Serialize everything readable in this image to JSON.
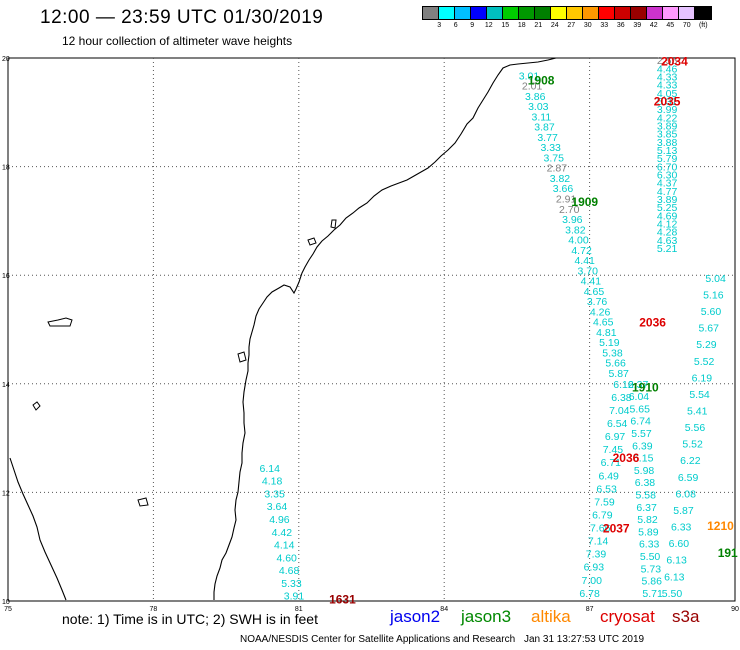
{
  "header": {
    "title": "12:00 — 23:59 UTC 01/30/2019",
    "subtitle": "12 hour collection of altimeter wave heights"
  },
  "legend": {
    "colors": [
      "#808080",
      "#00ffff",
      "#00bfff",
      "#0000ff",
      "#00bfbf",
      "#00cc00",
      "#009900",
      "#007f00",
      "#ffff00",
      "#ffc800",
      "#ff9900",
      "#ff0000",
      "#cc0000",
      "#990000",
      "#cc33cc",
      "#ff99ff",
      "#e6c3ff",
      "#000000"
    ],
    "ticks": [
      "3",
      "6",
      "9",
      "12",
      "15",
      "18",
      "21",
      "24",
      "27",
      "30",
      "33",
      "36",
      "39",
      "42",
      "45",
      "70",
      "(ft)"
    ]
  },
  "map": {
    "lon_range": [
      75,
      90
    ],
    "lat_range": [
      10,
      20
    ],
    "lon_labels": [
      "75",
      "78",
      "81",
      "84",
      "87",
      "90"
    ],
    "lat_labels": [
      "20",
      "18",
      "16",
      "14",
      "12",
      "10"
    ],
    "swh_color": "#00cccc",
    "low_color": "#808080",
    "pass_labels": [
      {
        "text": "2034",
        "color": "#dd0000",
        "lon": 88.75,
        "lat": 19.95
      },
      {
        "text": "2035",
        "color": "#dd0000",
        "lon": 88.6,
        "lat": 19.22
      },
      {
        "text": "1908",
        "color": "#008000",
        "lon": 86.0,
        "lat": 19.6
      },
      {
        "text": "1909",
        "color": "#008000",
        "lon": 86.9,
        "lat": 17.37
      },
      {
        "text": "2036",
        "color": "#dd0000",
        "lon": 88.3,
        "lat": 15.15
      },
      {
        "text": "1910",
        "color": "#008000",
        "lon": 88.15,
        "lat": 13.95
      },
      {
        "text": "2036",
        "color": "#dd0000",
        "lon": 87.75,
        "lat": 12.65
      },
      {
        "text": "2037",
        "color": "#dd0000",
        "lon": 87.55,
        "lat": 11.35
      },
      {
        "text": "1210",
        "color": "#ff8800",
        "lon": 89.7,
        "lat": 11.4
      },
      {
        "text": "191",
        "color": "#008000",
        "lon": 89.85,
        "lat": 10.9
      },
      {
        "text": "1631",
        "color": "#990000",
        "lon": 81.9,
        "lat": 10.05
      }
    ],
    "tracks": [
      {
        "lon_start": 88.6,
        "lon_end": 88.6,
        "lat_start": 19.96,
        "lat_end": 16.5,
        "values": [
          "2.55",
          "4.46",
          "4.33",
          "4.33",
          "4.05",
          "5.31",
          "3.99",
          "4.22",
          "3.89",
          "3.85",
          "3.88",
          "5.13",
          "5.79",
          "6.70",
          "6.30",
          "4.37",
          "4.77",
          "3.89",
          "5.25",
          "4.69",
          "4.12",
          "4.28",
          "4.63",
          "5.21"
        ]
      },
      {
        "lon_start": 85.75,
        "lon_end": 87.6,
        "lat_start": 19.68,
        "lat_end": 14.2,
        "values": [
          "3.01",
          "2.01",
          "3.86",
          "3.03",
          "3.11",
          "3.87",
          "3.77",
          "3.33",
          "3.75",
          "2.87",
          "3.82",
          "3.66",
          "2.91",
          "2.70",
          "3.96",
          "3.82",
          "4.00",
          "4.72",
          "4.41",
          "3.70",
          "4.41",
          "4.65",
          "3.76",
          "4.26",
          "4.65",
          "4.81",
          "5.19",
          "5.38",
          "5.66",
          "5.87"
        ]
      },
      {
        "lon_start": 87.7,
        "lon_end": 87.0,
        "lat_start": 14.0,
        "lat_end": 10.15,
        "values": [
          "6.12",
          "6.38",
          "7.04",
          "6.54",
          "6.97",
          "7.45",
          "6.71",
          "6.49",
          "6.53",
          "7.59",
          "6.79",
          "7.66",
          "7.14",
          "7.39",
          "6.93",
          "7.00",
          "6.78"
        ]
      },
      {
        "lon_start": 88.0,
        "lon_end": 88.3,
        "lat_start": 14.0,
        "lat_end": 10.15,
        "values": [
          "6.37",
          "6.04",
          "5.65",
          "6.74",
          "5.57",
          "6.39",
          "6.15",
          "5.98",
          "6.38",
          "5.58",
          "6.37",
          "5.82",
          "5.89",
          "6.33",
          "5.50",
          "5.73",
          "5.86",
          "5.71"
        ]
      },
      {
        "lon_start": 89.6,
        "lon_end": 88.7,
        "lat_start": 15.95,
        "lat_end": 10.15,
        "values": [
          "5.04",
          "5.16",
          "5.60",
          "5.67",
          "5.29",
          "5.52",
          "6.19",
          "5.54",
          "5.41",
          "5.56",
          "5.52",
          "6.22",
          "6.59",
          "6.08",
          "5.87",
          "6.33",
          "6.60",
          "6.13",
          "6.13",
          "5.50"
        ]
      },
      {
        "lon_start": 80.4,
        "lon_end": 80.9,
        "lat_start": 12.45,
        "lat_end": 10.1,
        "values": [
          "6.14",
          "4.18",
          "3.35",
          "3.64",
          "4.96",
          "4.42",
          "4.14",
          "4.60",
          "4.68",
          "5.33",
          "3.91"
        ]
      }
    ]
  },
  "footer": {
    "note": "note:  1) Time is in UTC;  2) SWH is in feet",
    "satellites": [
      {
        "name": "jason2",
        "color": "#0000ee"
      },
      {
        "name": "jason3",
        "color": "#008800"
      },
      {
        "name": "altika",
        "color": "#ff8800"
      },
      {
        "name": "cryosat",
        "color": "#dd0000"
      },
      {
        "name": "s3a",
        "color": "#990000"
      }
    ],
    "credit": "NOAA/NESDIS Center for Satellite Applications and Research",
    "timestamp": "Jan 31 13:27:53 UTC 2019"
  }
}
